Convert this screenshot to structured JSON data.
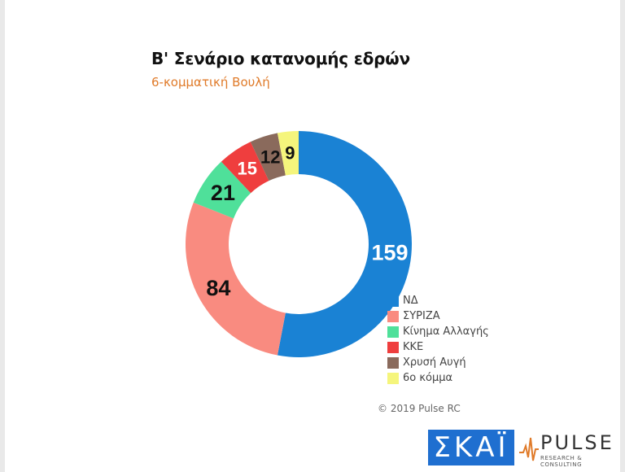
{
  "title": "Β' Σενάριο κατανομής εδρών",
  "subtitle": "6-κομματική Βουλή",
  "copyright": "© 2019 Pulse RC",
  "logos": {
    "skai": "ΣΚΑΪ",
    "pulse": "PULSE",
    "pulse_tagline": "RESEARCH & CONSULTING"
  },
  "chart_data": {
    "type": "pie",
    "style": "donut",
    "categories": [
      "ΝΔ",
      "ΣΥΡΙΖΑ",
      "Κίνημα Αλλαγής",
      "ΚΚΕ",
      "Χρυσή Αυγή",
      "6ο κόμμα"
    ],
    "values": [
      159,
      84,
      21,
      15,
      12,
      9
    ],
    "colors": [
      "#1a82d4",
      "#f98b80",
      "#4fe09a",
      "#ef3e3e",
      "#8a6a5c",
      "#f5f57c"
    ],
    "data_labels": [
      "159",
      "84",
      "21",
      "15",
      "12",
      "9"
    ],
    "label_color_on_dark": "#ffffff",
    "legend_position": "bottom-right"
  }
}
